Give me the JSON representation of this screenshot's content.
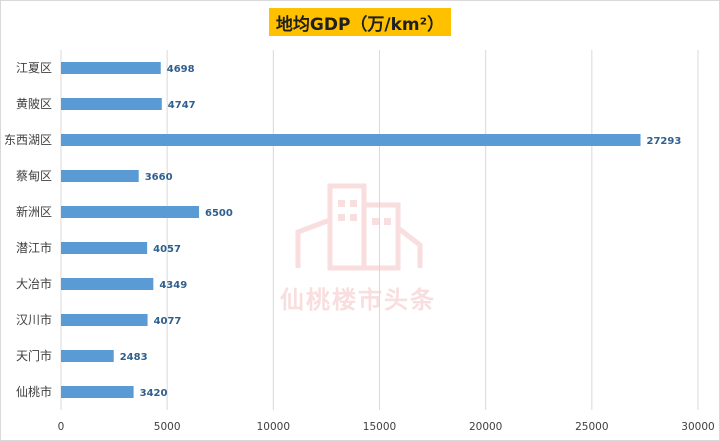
{
  "chart_data": {
    "type": "bar",
    "orientation": "horizontal",
    "title": "地均GDP（万/km²）",
    "categories": [
      "江夏区",
      "黄陂区",
      "东西湖区",
      "蔡甸区",
      "新洲区",
      "潜江市",
      "大冶市",
      "汉川市",
      "天门市",
      "仙桃市"
    ],
    "values": [
      4698,
      4747,
      27293,
      3660,
      6500,
      4057,
      4349,
      4077,
      2483,
      3420
    ],
    "xlim": [
      0,
      30000
    ],
    "xticks": [
      0,
      5000,
      10000,
      15000,
      20000,
      25000,
      30000
    ],
    "xlabel": "",
    "ylabel": "",
    "grid": "vertical",
    "bar_color": "#5b9bd5",
    "data_label_color": "#2e5f8f",
    "title_bg_color": "#ffc000"
  },
  "watermark": {
    "text": "仙桃楼市头条"
  }
}
